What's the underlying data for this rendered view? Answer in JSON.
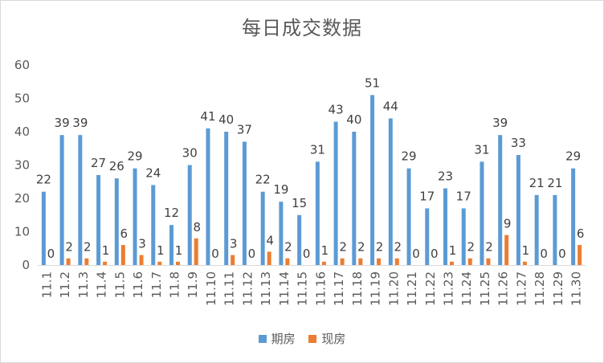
{
  "chart_data": {
    "type": "bar",
    "title": "每日成交数据",
    "categories": [
      "11.1",
      "11.2",
      "11.3",
      "11.4",
      "11.5",
      "11.6",
      "11.7",
      "11.8",
      "11.9",
      "11.10",
      "11.11",
      "11.12",
      "11.13",
      "11.14",
      "11.15",
      "11.16",
      "11.17",
      "11.18",
      "11.19",
      "11.20",
      "11.21",
      "11.22",
      "11.23",
      "11.24",
      "11.25",
      "11.26",
      "11.27",
      "11.28",
      "11.29",
      "11.30"
    ],
    "series": [
      {
        "name": "期房",
        "color": "#5b9bd5",
        "values": [
          22,
          39,
          39,
          27,
          26,
          29,
          24,
          12,
          30,
          41,
          40,
          37,
          22,
          19,
          15,
          31,
          43,
          40,
          51,
          44,
          29,
          17,
          23,
          17,
          31,
          39,
          33,
          21,
          21,
          29
        ]
      },
      {
        "name": "现房",
        "color": "#ed7d31",
        "values": [
          0,
          2,
          2,
          1,
          6,
          3,
          1,
          1,
          8,
          0,
          3,
          0,
          4,
          2,
          0,
          1,
          2,
          2,
          2,
          2,
          0,
          0,
          1,
          2,
          2,
          9,
          1,
          0,
          0,
          6
        ]
      }
    ],
    "ylim": [
      0,
      60
    ],
    "yticks": [
      0,
      10,
      20,
      30,
      40,
      50,
      60
    ],
    "grid": false,
    "legend_position": "bottom"
  }
}
